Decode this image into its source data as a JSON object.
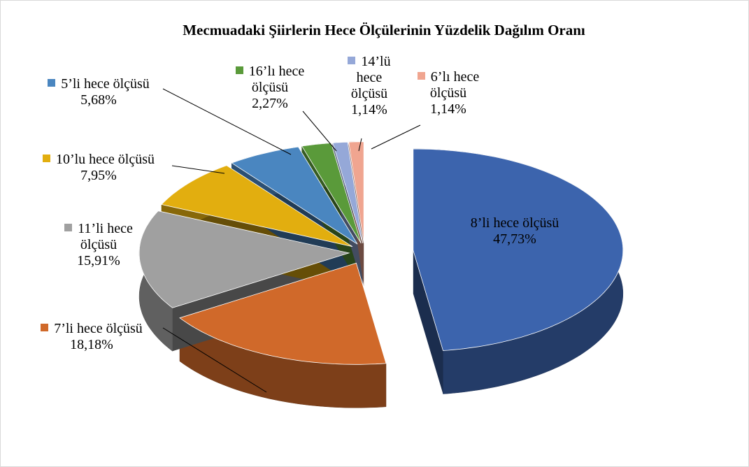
{
  "chart_data": {
    "type": "pie3d",
    "title": "Mecmuadaki Şiirlerin Hece Ölçülerinin Yüzdelik Dağılım Oranı",
    "categories": [
      "8’li hece ölçüsü",
      "7’li hece ölçüsü",
      "11’li hece ölçüsü",
      "10’lu hece ölçüsü",
      "5’li hece ölçüsü",
      "16’lı hece ölçüsü",
      "14’lü hece ölçüsü",
      "6’lı hece ölçüsü"
    ],
    "values": [
      47.73,
      18.18,
      15.91,
      7.95,
      5.68,
      2.27,
      1.14,
      1.14
    ],
    "value_labels": [
      "47,73%",
      "18,18%",
      "15,91%",
      "7,95%",
      "5,68%",
      "2,27%",
      "1,14%",
      "1,14%"
    ],
    "colors": [
      "#3c64ad",
      "#d0692a",
      "#a0a0a0",
      "#e2ae0f",
      "#4a86c0",
      "#5a9a3a",
      "#95a8d8",
      "#f0a590"
    ]
  }
}
